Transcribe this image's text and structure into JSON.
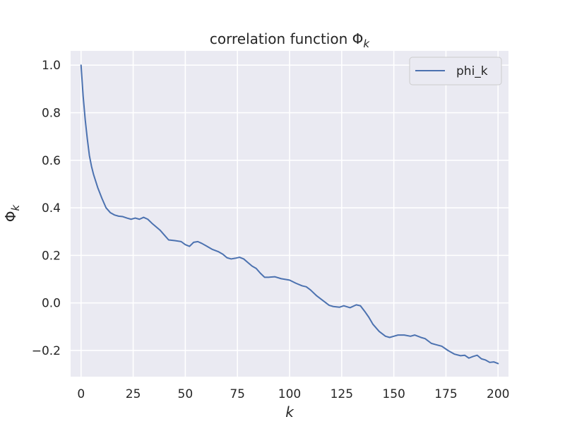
{
  "chart_data": {
    "type": "line",
    "title": "correlation function Φ_k",
    "xlabel": "k",
    "ylabel": "Φ_k",
    "xlim": [
      -5,
      205
    ],
    "ylim": [
      -0.31,
      1.06
    ],
    "xticks": [
      0,
      25,
      50,
      75,
      100,
      125,
      150,
      175,
      200
    ],
    "yticks": [
      -0.2,
      0.0,
      0.2,
      0.4,
      0.6,
      0.8,
      1.0
    ],
    "xtick_labels": [
      "0",
      "25",
      "50",
      "75",
      "100",
      "125",
      "150",
      "175",
      "200"
    ],
    "ytick_labels": [
      "−0.2",
      "0.0",
      "0.2",
      "0.4",
      "0.6",
      "0.8",
      "1.0"
    ],
    "grid": true,
    "legend_position": "top-right",
    "colors": {
      "line": "#4c72b0",
      "background": "#eaeaf2",
      "grid": "#ffffff"
    },
    "series": [
      {
        "name": "phi_k",
        "x": [
          0,
          1,
          2,
          3,
          4,
          5,
          6,
          8,
          10,
          12,
          14,
          16,
          18,
          20,
          22,
          24,
          26,
          28,
          30,
          32,
          34,
          36,
          38,
          40,
          42,
          45,
          48,
          50,
          52,
          54,
          56,
          58,
          60,
          63,
          66,
          68,
          70,
          72,
          74,
          76,
          78,
          80,
          82,
          84,
          86,
          88,
          90,
          93,
          96,
          100,
          103,
          106,
          108,
          110,
          113,
          116,
          119,
          121,
          124,
          126,
          129,
          132,
          134,
          136,
          138,
          140,
          143,
          146,
          148,
          150,
          152,
          155,
          158,
          160,
          163,
          165,
          168,
          170,
          173,
          176,
          179,
          182,
          184,
          186,
          188,
          190,
          192,
          194,
          196,
          198,
          200
        ],
        "y": [
          1.0,
          0.87,
          0.77,
          0.69,
          0.62,
          0.575,
          0.54,
          0.485,
          0.44,
          0.4,
          0.38,
          0.37,
          0.365,
          0.363,
          0.357,
          0.352,
          0.357,
          0.352,
          0.36,
          0.352,
          0.335,
          0.32,
          0.305,
          0.285,
          0.265,
          0.262,
          0.258,
          0.245,
          0.238,
          0.255,
          0.258,
          0.25,
          0.24,
          0.225,
          0.215,
          0.205,
          0.19,
          0.185,
          0.188,
          0.192,
          0.185,
          0.17,
          0.155,
          0.145,
          0.125,
          0.108,
          0.108,
          0.11,
          0.102,
          0.096,
          0.083,
          0.072,
          0.068,
          0.055,
          0.03,
          0.01,
          -0.01,
          -0.015,
          -0.018,
          -0.012,
          -0.02,
          -0.008,
          -0.012,
          -0.035,
          -0.06,
          -0.09,
          -0.12,
          -0.14,
          -0.145,
          -0.14,
          -0.135,
          -0.135,
          -0.14,
          -0.135,
          -0.145,
          -0.15,
          -0.17,
          -0.175,
          -0.182,
          -0.2,
          -0.215,
          -0.222,
          -0.22,
          -0.232,
          -0.225,
          -0.22,
          -0.235,
          -0.24,
          -0.25,
          -0.248,
          -0.255
        ]
      }
    ]
  }
}
